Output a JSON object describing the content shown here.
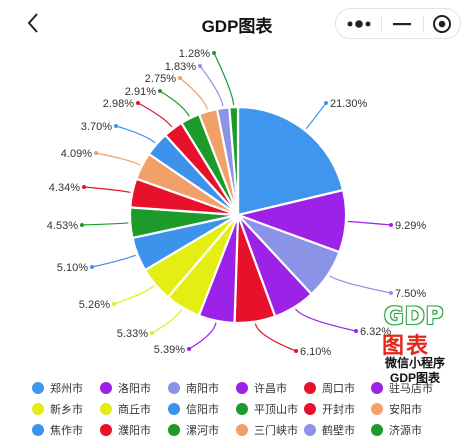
{
  "header": {
    "title": "GDP图表",
    "back_icon": "chevron-left-icon",
    "more_icon": "more-dots-icon",
    "minimize_icon": "minimize-icon",
    "close_icon": "record-circle-icon"
  },
  "logo": {
    "main": "GDP",
    "sub_main": "图表",
    "line1": "微信小程序",
    "line2": "GDP图表"
  },
  "chart_data": {
    "type": "pie",
    "title": "",
    "categories": [
      "郑州市",
      "洛阳市",
      "南阳市",
      "许昌市",
      "周口市",
      "驻马店市",
      "新乡市",
      "商丘市",
      "信阳市",
      "平顶山市",
      "开封市",
      "安阳市",
      "焦作市",
      "濮阳市",
      "漯河市",
      "三门峡市",
      "鹤壁市",
      "济源市"
    ],
    "values": [
      21.3,
      9.29,
      7.5,
      6.32,
      6.1,
      5.39,
      5.33,
      5.26,
      5.1,
      4.53,
      4.34,
      4.09,
      3.7,
      2.98,
      2.91,
      2.75,
      1.83,
      1.28
    ],
    "labels": [
      "21.30%",
      "9.29%",
      "7.50%",
      "6.32%",
      "6.10%",
      "5.39%",
      "5.33%",
      "5.26%",
      "5.10%",
      "4.53%",
      "4.34%",
      "4.09%",
      "3.70%",
      "2.98%",
      "2.91%",
      "2.75%",
      "1.83%",
      "1.28%"
    ],
    "colors": [
      "#4096ef",
      "#9b22e6",
      "#8b93e6",
      "#9b22e6",
      "#e8112c",
      "#9b22e6",
      "#e4ee13",
      "#e4ee13",
      "#3d92eb",
      "#1c9b2a",
      "#e8112c",
      "#f2a06a",
      "#3d92eb",
      "#e8112c",
      "#1c9b2a",
      "#f2a06a",
      "#8b93e6",
      "#1c9b2a"
    ],
    "legend_position": "bottom"
  }
}
